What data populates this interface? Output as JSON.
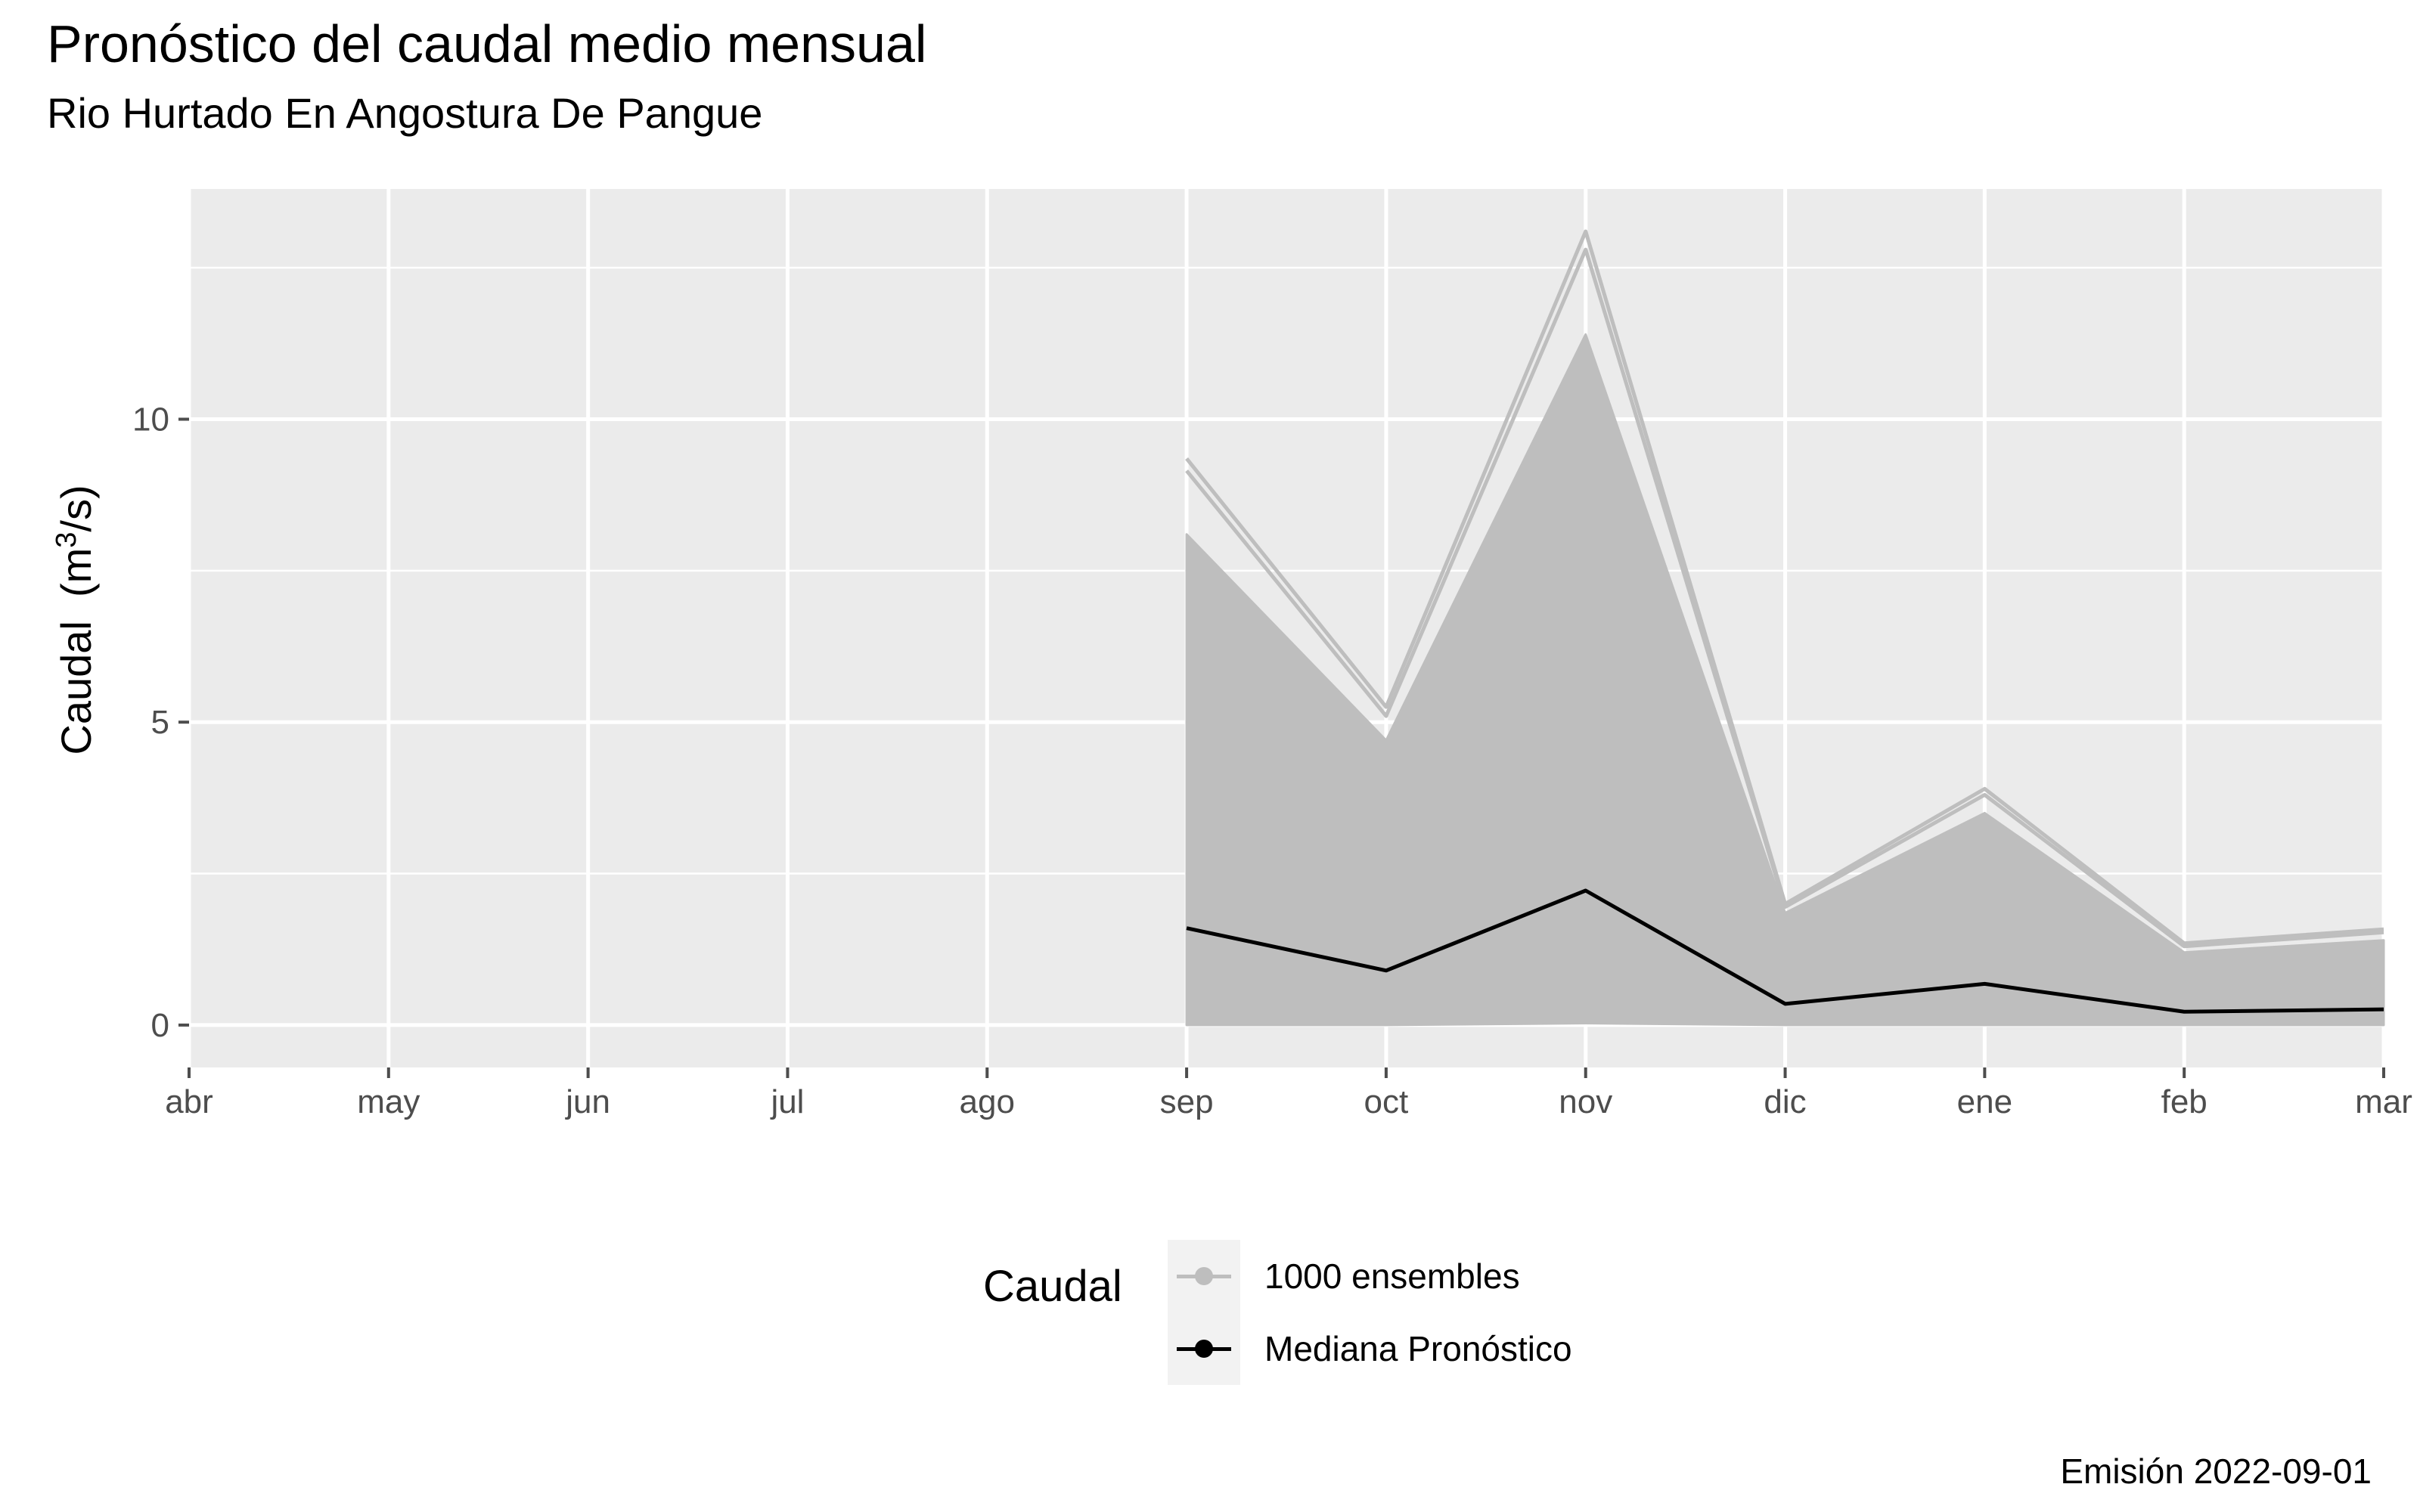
{
  "title": "Pronóstico del caudal medio mensual",
  "subtitle": "Rio Hurtado En Angostura De Pangue",
  "caption": "Emisión 2022-09-01",
  "colors": {
    "panel": "#ebebeb",
    "grid": "#ffffff",
    "ensemble": "#bebebe",
    "median": "#000000",
    "tick": "#4d4d4d"
  },
  "chart_data": {
    "type": "line",
    "title": "Pronóstico del caudal medio mensual",
    "subtitle": "Rio Hurtado En Angostura De Pangue",
    "xlabel": "",
    "ylabel": "Caudal",
    "ylabel_unit_base": "(m",
    "ylabel_unit_exp": "3",
    "ylabel_unit_tail": "/s)",
    "categories": [
      "abr",
      "may",
      "jun",
      "jul",
      "ago",
      "sep",
      "oct",
      "nov",
      "dic",
      "ene",
      "feb",
      "mar"
    ],
    "ylim": [
      -0.7,
      13.8
    ],
    "yticks": [
      0,
      5,
      10
    ],
    "ytick_labels": [
      "0",
      "5",
      "10"
    ],
    "minor_yticks": [
      2.5,
      7.5,
      12.5
    ],
    "grid": true,
    "legend": {
      "title": "Caudal",
      "position": "bottom",
      "entries": [
        "1000 ensembles",
        "Mediana Pronóstico"
      ]
    },
    "series": [
      {
        "name": "Mediana Pronóstico",
        "color": "#000000",
        "x": [
          "sep",
          "oct",
          "nov",
          "dic",
          "ene",
          "feb",
          "mar"
        ],
        "values": [
          1.6,
          0.9,
          2.22,
          0.35,
          0.68,
          0.22,
          0.26
        ]
      },
      {
        "name": "1000 ensembles",
        "color": "#bebebe",
        "x": [
          "sep",
          "oct",
          "nov",
          "dic",
          "ene",
          "feb",
          "mar"
        ],
        "band_lower": [
          0.0,
          0.0,
          0.03,
          0.0,
          0.0,
          0.0,
          0.0
        ],
        "band_upper": [
          8.1,
          4.7,
          11.4,
          1.85,
          3.5,
          1.2,
          1.4
        ],
        "extra_members": [
          [
            9.35,
            5.25,
            13.1,
            2.0,
            3.9,
            1.35,
            1.58
          ],
          [
            9.15,
            5.1,
            12.8,
            1.95,
            3.8,
            1.3,
            1.53
          ]
        ]
      }
    ]
  }
}
